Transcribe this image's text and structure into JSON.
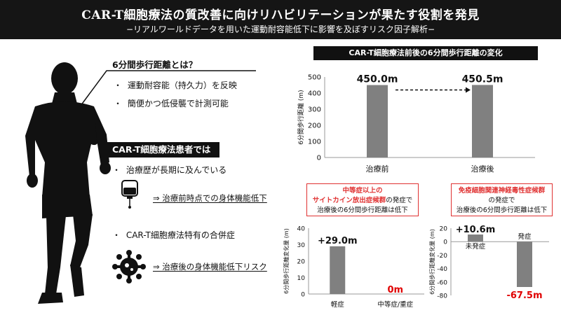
{
  "header": {
    "title": "CAR-T細胞療法の質改善に向けリハビリテーションが果たす役割を発見",
    "subtitle": "−リアルワールドデータを用いた運動耐容能低下に影響を及ぼすリスク因子解析−"
  },
  "intro": {
    "heading": "6分間歩行距離とは？",
    "bullets": [
      "運動耐容能（持久力）を反映",
      "簡便かつ低侵襲で計測可能"
    ]
  },
  "patients": {
    "heading": "CAR-T細胞療法患者では",
    "bullet1": "治療歴が長期に及んでいる",
    "arrow1": "⇒ 治療前時点での身体機能低下",
    "bullet2": "CAR-T細胞療法特有の合併症",
    "arrow2": "⇒ 治療後の身体機能低下リスク",
    "bullet_mark": "・"
  },
  "notes": {
    "crs": {
      "line1": "中等症以上の",
      "line2": "サイトカイン放出症候群",
      "line2_suffix": "の発症で",
      "line3": "治療後の6分間歩行距離は低下"
    },
    "icans": {
      "line1": "免疫細胞関連神経毒性症候群",
      "line2": "の発症で",
      "line3": "治療後の6分間歩行距離は低下"
    }
  },
  "colors": {
    "bar": "#808080",
    "negative_label": "#e00000",
    "note_border": "#e03131",
    "header_bg": "#151515"
  },
  "icons": [
    "runner-silhouette",
    "iv-bag-icon",
    "virus-icon"
  ],
  "chart_data": [
    {
      "type": "bar",
      "title": "CAR-T細胞療法前後の6分間歩行距離の変化",
      "ylabel": "6分間歩行距離 (m)",
      "categories": [
        "治療前",
        "治療後"
      ],
      "values": [
        450.0,
        450.5
      ],
      "value_labels": [
        "450.0m",
        "450.5m"
      ],
      "ylim": [
        0,
        500
      ],
      "yticks": [
        0,
        100,
        200,
        300,
        400,
        500
      ]
    },
    {
      "type": "bar",
      "ylabel": "6分間歩行距離変化量 (m)",
      "categories": [
        "軽症",
        "中等症/重症"
      ],
      "values": [
        29.0,
        0
      ],
      "value_labels": [
        "+29.0m",
        "0m"
      ],
      "ylim": [
        0,
        40
      ],
      "yticks": [
        0,
        10,
        20,
        30,
        40
      ]
    },
    {
      "type": "bar",
      "ylabel": "6分間歩行距離変化量 (m)",
      "categories": [
        "未発症",
        "発症"
      ],
      "values": [
        10.6,
        -67.5
      ],
      "value_labels": [
        "+10.6m",
        "-67.5m"
      ],
      "ylim": [
        -80,
        20
      ],
      "yticks": [
        -80,
        -60,
        -40,
        -20,
        0,
        20
      ]
    }
  ]
}
